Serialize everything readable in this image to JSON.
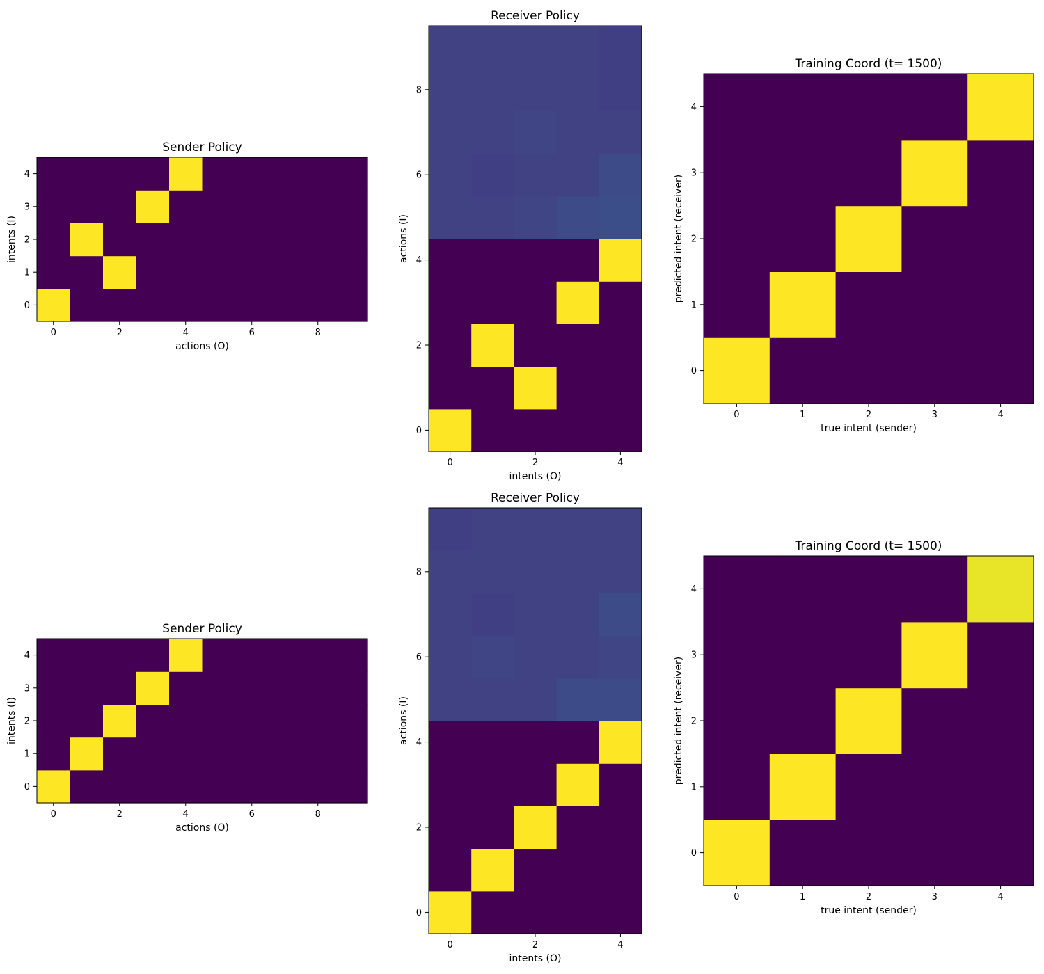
{
  "colors": {
    "low": "#440154",
    "mid": "#3b4d8c",
    "high": "#fde725"
  },
  "chart_data": [
    {
      "id": "sender-top",
      "type": "heatmap",
      "title": "Sender Policy",
      "xlabel": "actions (O)",
      "ylabel": "intents (I)",
      "xlim": [
        -0.5,
        9.5
      ],
      "ylim": [
        -0.5,
        4.5
      ],
      "xticks": [
        0,
        2,
        4,
        6,
        8
      ],
      "yticks": [
        0,
        1,
        2,
        3,
        4
      ],
      "grid": false,
      "rows": [
        [
          1,
          0,
          0,
          0,
          0,
          0,
          0,
          0,
          0,
          0
        ],
        [
          0,
          0,
          1,
          0,
          0,
          0,
          0,
          0,
          0,
          0
        ],
        [
          0,
          1,
          0,
          0,
          0,
          0,
          0,
          0,
          0,
          0
        ],
        [
          0,
          0,
          0,
          1,
          0,
          0,
          0,
          0,
          0,
          0
        ],
        [
          0,
          0,
          0,
          0,
          1,
          0,
          0,
          0,
          0,
          0
        ]
      ]
    },
    {
      "id": "receiver-top",
      "type": "heatmap",
      "title": "Receiver Policy",
      "xlabel": "intents (O)",
      "ylabel": "actions (I)",
      "xlim": [
        -0.5,
        4.5
      ],
      "ylim": [
        -0.5,
        9.5
      ],
      "xticks": [
        0,
        2,
        4
      ],
      "yticks": [
        0,
        2,
        4,
        6,
        8
      ],
      "grid": false,
      "rows": [
        [
          1,
          0,
          0,
          0,
          0
        ],
        [
          0,
          0,
          1,
          0,
          0
        ],
        [
          0,
          1,
          0,
          0,
          0
        ],
        [
          0,
          0,
          0,
          1,
          0
        ],
        [
          0,
          0,
          0,
          0,
          1
        ],
        [
          0.2,
          0.2,
          0.21,
          0.23,
          0.24
        ],
        [
          0.2,
          0.19,
          0.2,
          0.2,
          0.23
        ],
        [
          0.2,
          0.2,
          0.21,
          0.2,
          0.2
        ],
        [
          0.2,
          0.2,
          0.2,
          0.2,
          0.19
        ],
        [
          0.2,
          0.2,
          0.2,
          0.2,
          0.19
        ]
      ]
    },
    {
      "id": "coord-top",
      "type": "heatmap",
      "title": "Training Coord (t= 1500)",
      "xlabel": "true intent (sender)",
      "ylabel": "predicted intent (receiver)",
      "xlim": [
        -0.5,
        4.5
      ],
      "ylim": [
        -0.5,
        4.5
      ],
      "xticks": [
        0,
        1,
        2,
        3,
        4
      ],
      "yticks": [
        0,
        1,
        2,
        3,
        4
      ],
      "grid": false,
      "rows": [
        [
          1,
          0,
          0,
          0,
          0
        ],
        [
          0,
          1,
          0,
          0,
          0
        ],
        [
          0,
          0,
          1,
          0,
          0
        ],
        [
          0,
          0,
          0,
          1,
          0
        ],
        [
          0,
          0,
          0,
          0,
          1
        ]
      ]
    },
    {
      "id": "sender-bottom",
      "type": "heatmap",
      "title": "Sender Policy",
      "xlabel": "actions (O)",
      "ylabel": "intents (I)",
      "xlim": [
        -0.5,
        9.5
      ],
      "ylim": [
        -0.5,
        4.5
      ],
      "xticks": [
        0,
        2,
        4,
        6,
        8
      ],
      "yticks": [
        0,
        1,
        2,
        3,
        4
      ],
      "grid": false,
      "rows": [
        [
          1,
          0,
          0,
          0,
          0,
          0,
          0,
          0,
          0,
          0
        ],
        [
          0,
          1,
          0,
          0,
          0,
          0,
          0,
          0,
          0,
          0
        ],
        [
          0,
          0,
          1,
          0,
          0,
          0,
          0,
          0,
          0,
          0
        ],
        [
          0,
          0,
          0,
          1,
          0,
          0,
          0,
          0,
          0,
          0
        ],
        [
          0,
          0,
          0,
          0,
          1,
          0,
          0,
          0,
          0,
          0
        ]
      ]
    },
    {
      "id": "receiver-bottom",
      "type": "heatmap",
      "title": "Receiver Policy",
      "xlabel": "intents (O)",
      "ylabel": "actions (I)",
      "xlim": [
        -0.5,
        4.5
      ],
      "ylim": [
        -0.5,
        9.5
      ],
      "xticks": [
        0,
        2,
        4
      ],
      "yticks": [
        0,
        2,
        4,
        6,
        8
      ],
      "grid": false,
      "rows": [
        [
          1,
          0,
          0,
          0,
          0
        ],
        [
          0,
          1,
          0,
          0,
          0
        ],
        [
          0,
          0,
          1,
          0,
          0
        ],
        [
          0,
          0,
          0,
          1,
          0
        ],
        [
          0,
          0,
          0,
          0,
          1
        ],
        [
          0.2,
          0.2,
          0.2,
          0.23,
          0.23
        ],
        [
          0.2,
          0.21,
          0.2,
          0.2,
          0.21
        ],
        [
          0.2,
          0.19,
          0.2,
          0.2,
          0.23
        ],
        [
          0.2,
          0.2,
          0.2,
          0.2,
          0.2
        ],
        [
          0.19,
          0.2,
          0.2,
          0.2,
          0.2
        ]
      ]
    },
    {
      "id": "coord-bottom",
      "type": "heatmap",
      "title": "Training Coord (t= 1500)",
      "xlabel": "true intent (sender)",
      "ylabel": "predicted intent (receiver)",
      "xlim": [
        -0.5,
        4.5
      ],
      "ylim": [
        -0.5,
        4.5
      ],
      "xticks": [
        0,
        1,
        2,
        3,
        4
      ],
      "yticks": [
        0,
        1,
        2,
        3,
        4
      ],
      "grid": false,
      "rows": [
        [
          1,
          0,
          0,
          0,
          0
        ],
        [
          0,
          1,
          0,
          0,
          0
        ],
        [
          0,
          0,
          1,
          0,
          0
        ],
        [
          0,
          0,
          0,
          1,
          0
        ],
        [
          0,
          0,
          0,
          0,
          0.97
        ]
      ]
    }
  ]
}
